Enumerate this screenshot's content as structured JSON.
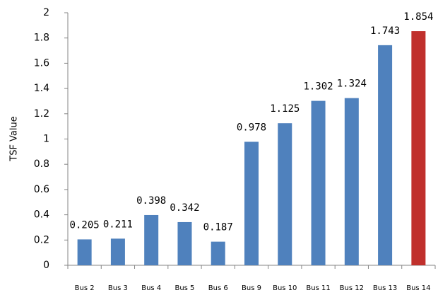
{
  "chart_data": {
    "type": "bar",
    "y_label": "TSF Value",
    "categories": [
      "Bus 2",
      "Bus 3",
      "Bus 4",
      "Bus 5",
      "Bus 6",
      "Bus 9",
      "Bus 10",
      "Bus 11",
      "Bus 12",
      "Bus 13",
      "Bus 14"
    ],
    "values": [
      0.205,
      0.211,
      0.398,
      0.342,
      0.187,
      0.978,
      1.125,
      1.302,
      1.324,
      1.743,
      1.854
    ],
    "colors": [
      "#4f81bd",
      "#4f81bd",
      "#4f81bd",
      "#4f81bd",
      "#4f81bd",
      "#4f81bd",
      "#4f81bd",
      "#4f81bd",
      "#4f81bd",
      "#4f81bd",
      "#c0302c"
    ],
    "ylim": [
      0,
      2
    ],
    "yticks": [
      0,
      0.2,
      0.4,
      0.6,
      0.8,
      1,
      1.2,
      1.4,
      1.6,
      1.8,
      2
    ],
    "grid": false
  }
}
